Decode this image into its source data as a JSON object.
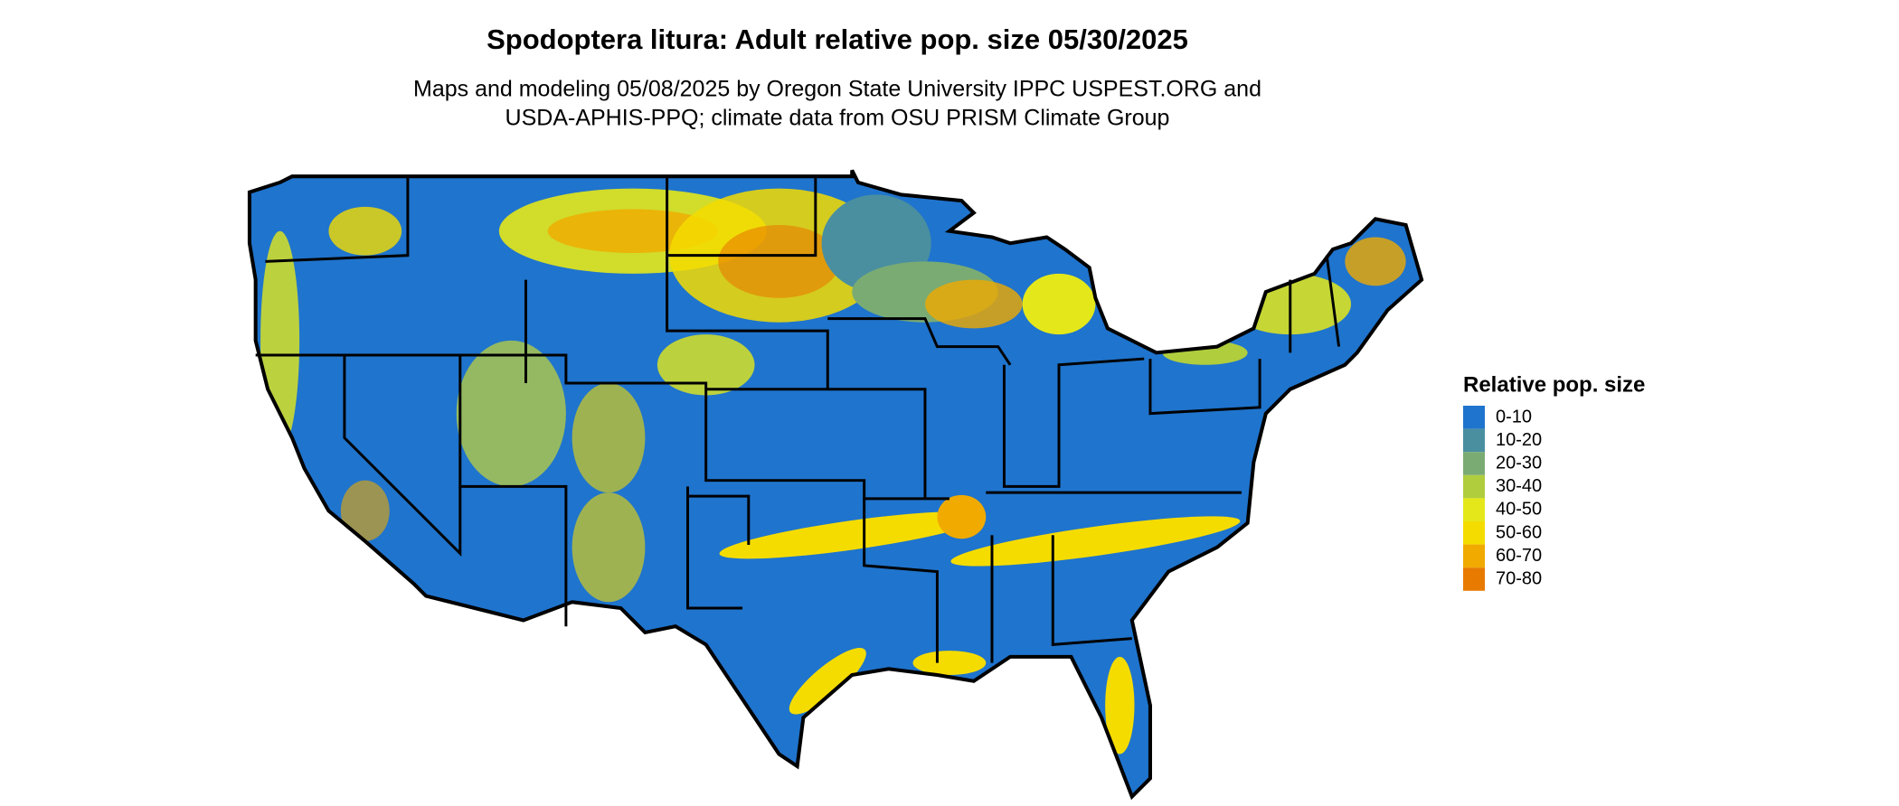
{
  "header": {
    "title": "Spodoptera litura: Adult relative pop. size 05/30/2025",
    "subtitle": [
      "Maps and modeling 05/08/2025 by Oregon State University IPPC USPEST.ORG and",
      "USDA-APHIS-PPQ; climate data from OSU PRISM Climate Group"
    ]
  },
  "legend": {
    "title": "Relative pop. size",
    "items": [
      {
        "label": "0-10",
        "color": "#1f74cd"
      },
      {
        "label": "10-20",
        "color": "#4a8fa0"
      },
      {
        "label": "20-30",
        "color": "#7aab73"
      },
      {
        "label": "30-40",
        "color": "#b0cd3e"
      },
      {
        "label": "40-50",
        "color": "#e4e81a"
      },
      {
        "label": "50-60",
        "color": "#f5dc00"
      },
      {
        "label": "60-70",
        "color": "#f0aa00"
      },
      {
        "label": "70-80",
        "color": "#e87a00"
      }
    ]
  }
}
